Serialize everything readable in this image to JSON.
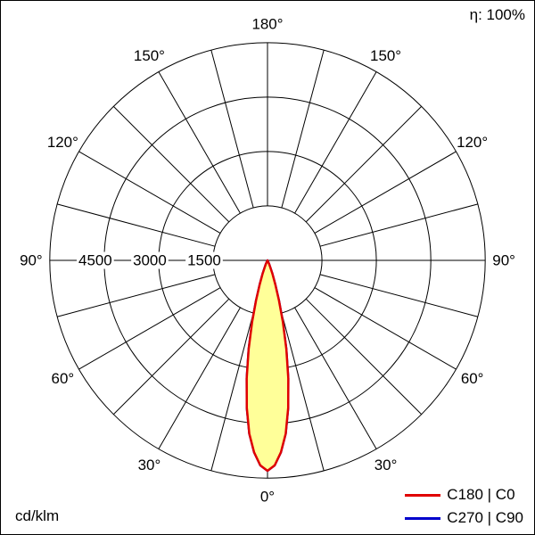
{
  "header": {
    "efficiency": "η: 100%"
  },
  "footer": {
    "unit": "cd/klm"
  },
  "legend": [
    {
      "label": "C180 | C0",
      "color": "#e00000"
    },
    {
      "label": "C270 | C90",
      "color": "#0000cc"
    }
  ],
  "chart_data": {
    "type": "polar",
    "title": "",
    "unit": "cd/klm",
    "efficiency_pct": 100,
    "radial_max": 6000,
    "radial_rings": [
      1500,
      3000,
      4500,
      6000
    ],
    "radial_tick_labels": [
      {
        "value": 4500,
        "label": "4500"
      },
      {
        "value": 3000,
        "label": "3000"
      },
      {
        "value": 1500,
        "label": "1500"
      }
    ],
    "angle_ticks": [
      {
        "deg": 0,
        "label": "0°"
      },
      {
        "deg": 30,
        "label": "30°"
      },
      {
        "deg": 60,
        "label": "60°"
      },
      {
        "deg": 90,
        "label": "90°"
      },
      {
        "deg": 120,
        "label": "120°"
      },
      {
        "deg": 150,
        "label": "150°"
      },
      {
        "deg": 180,
        "label": "180°"
      }
    ],
    "grid_angle_step_deg": 15,
    "grid_color": "#000000",
    "series": [
      {
        "name": "C180 | C0",
        "color": "#e00000",
        "fill": "#ffff99",
        "points_deg_cd": [
          [
            0,
            5800
          ],
          [
            2,
            5650
          ],
          [
            4,
            5300
          ],
          [
            6,
            4800
          ],
          [
            8,
            4100
          ],
          [
            10,
            3300
          ],
          [
            12,
            2500
          ],
          [
            14,
            1750
          ],
          [
            16,
            1150
          ],
          [
            18,
            700
          ],
          [
            20,
            400
          ],
          [
            22,
            210
          ],
          [
            24,
            100
          ],
          [
            26,
            40
          ],
          [
            28,
            10
          ],
          [
            30,
            0
          ]
        ]
      },
      {
        "name": "C270 | C90",
        "color": "#0000cc",
        "fill": "#ffff99",
        "points_deg_cd": [
          [
            0,
            5800
          ],
          [
            2,
            5650
          ],
          [
            4,
            5300
          ],
          [
            6,
            4800
          ],
          [
            8,
            4100
          ],
          [
            10,
            3300
          ],
          [
            12,
            2500
          ],
          [
            14,
            1750
          ],
          [
            16,
            1150
          ],
          [
            18,
            700
          ],
          [
            20,
            400
          ],
          [
            22,
            210
          ],
          [
            24,
            100
          ],
          [
            26,
            40
          ],
          [
            28,
            10
          ],
          [
            30,
            0
          ]
        ]
      }
    ]
  }
}
